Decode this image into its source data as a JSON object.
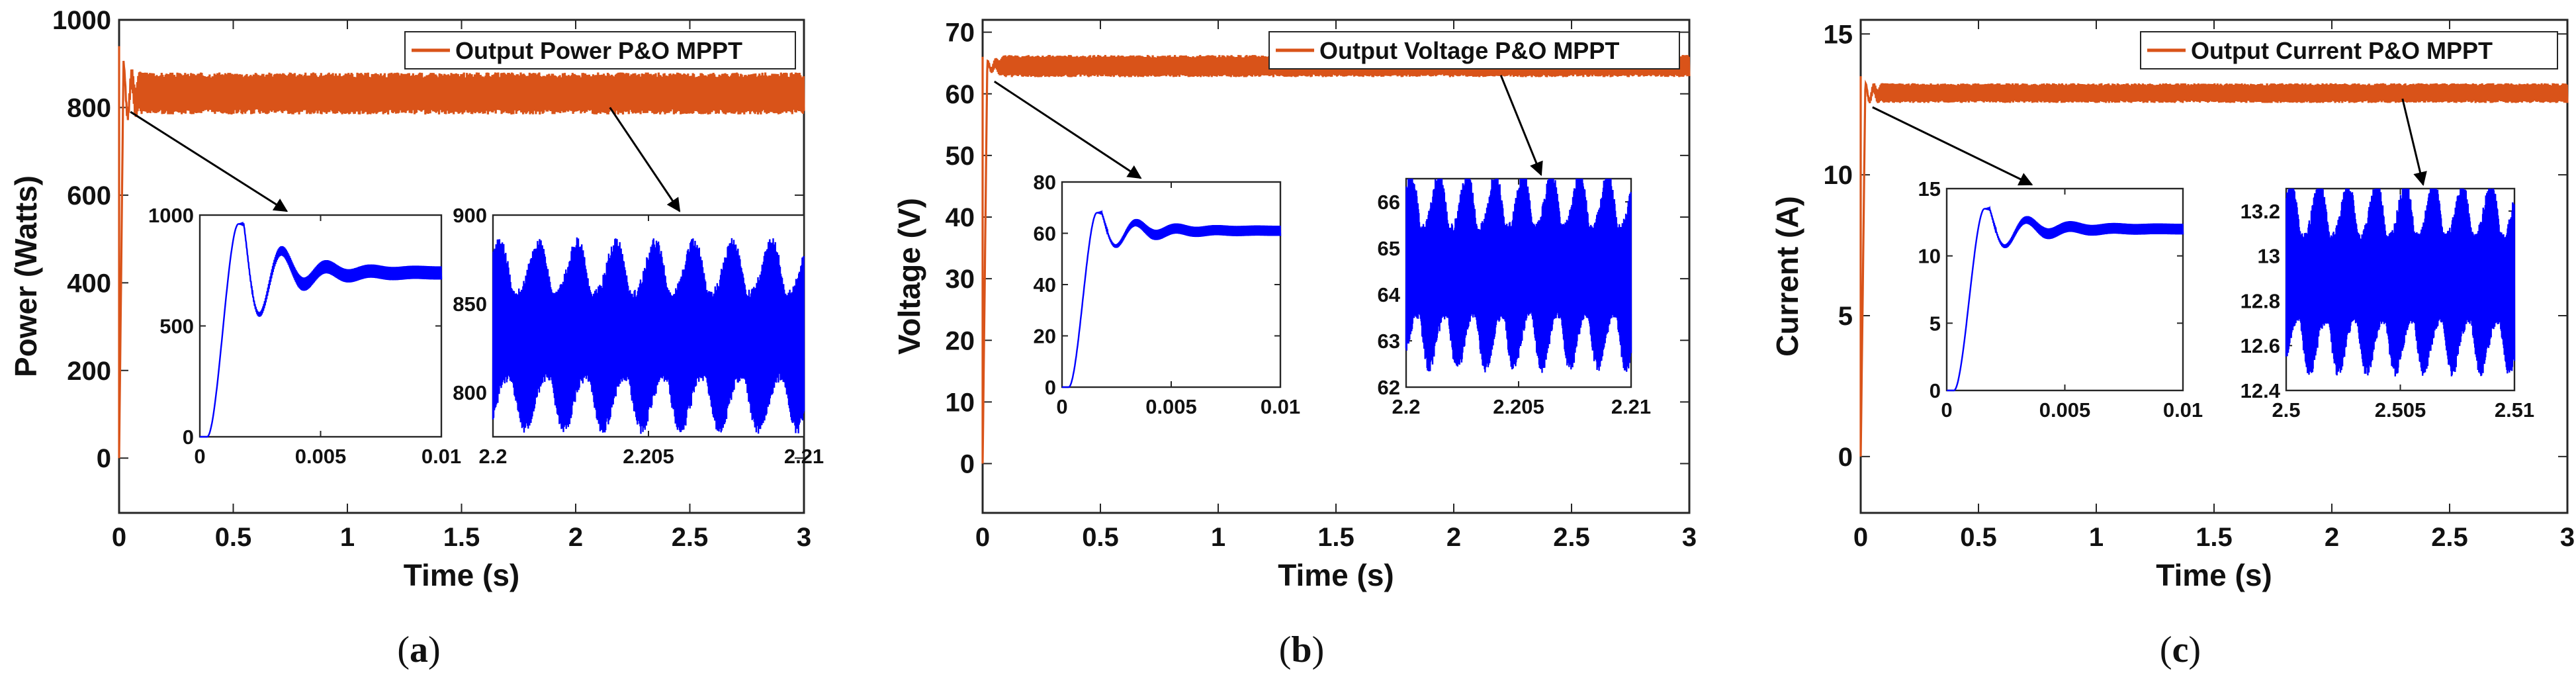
{
  "chart_data": [
    {
      "type": "line",
      "caption": "(a)",
      "caption_letter": "a",
      "xlabel": "Time (s)",
      "ylabel": "Power (Watts)",
      "xlim": [
        0,
        3
      ],
      "ylim": [
        -125,
        1000
      ],
      "xticks": [
        0,
        0.5,
        1,
        1.5,
        2,
        2.5,
        3
      ],
      "xtick_labels": [
        "0",
        "0.5",
        "1",
        "1.5",
        "2",
        "2.5",
        "3"
      ],
      "yticks": [
        0,
        200,
        400,
        600,
        800,
        1000
      ],
      "ytick_labels": [
        "0",
        "200",
        "400",
        "600",
        "800",
        "1000"
      ],
      "legend": "Output Power P&O MPPT",
      "series_color": "#d95319",
      "steady": {
        "center": 832,
        "amplitude": 48,
        "rise_time": 0.02,
        "settle_time": 0.1,
        "spike": 940
      },
      "insets": [
        {
          "kind": "transient",
          "xlim": [
            0,
            0.01
          ],
          "ylim": [
            0,
            1000
          ],
          "xticks": [
            0,
            0.005,
            0.01
          ],
          "xtick_labels": [
            "0",
            "0.005",
            "0.01"
          ],
          "yticks": [
            0,
            500,
            1000
          ],
          "ytick_labels": [
            "0",
            "500",
            "1000"
          ],
          "final": 740,
          "peak": 960,
          "ripple": 30,
          "color": "#0000ff",
          "arrow_from": [
            0.05,
            790
          ]
        },
        {
          "kind": "ripple",
          "xlim": [
            2.2,
            2.21
          ],
          "ylim": [
            775,
            900
          ],
          "xticks": [
            2.2,
            2.205,
            2.21
          ],
          "xtick_labels": [
            "2.2",
            "2.205",
            "2.21"
          ],
          "yticks": [
            800,
            850,
            900
          ],
          "ytick_labels": [
            "800",
            "850",
            "900"
          ],
          "center": 832,
          "amplitude": 48,
          "color": "#0000ff",
          "arrow_from": [
            2.15,
            800
          ]
        }
      ]
    },
    {
      "type": "line",
      "caption": "(b)",
      "caption_letter": "b",
      "xlabel": "Time (s)",
      "ylabel": "Voltage (V)",
      "xlim": [
        0,
        3
      ],
      "ylim": [
        -8,
        72
      ],
      "xticks": [
        0,
        0.5,
        1,
        1.5,
        2,
        2.5,
        3
      ],
      "xtick_labels": [
        "0",
        "0.5",
        "1",
        "1.5",
        "2",
        "2.5",
        "3"
      ],
      "yticks": [
        0,
        10,
        20,
        30,
        40,
        50,
        60,
        70
      ],
      "ytick_labels": [
        "0",
        "10",
        "20",
        "30",
        "40",
        "50",
        "60",
        "70"
      ],
      "legend": "Output Voltage P&O MPPT",
      "series_color": "#d95319",
      "steady": {
        "center": 64.5,
        "amplitude": 1.8,
        "rise_time": 0.02,
        "settle_time": 0.1,
        "spike": 66
      },
      "insets": [
        {
          "kind": "transient",
          "xlim": [
            0,
            0.01
          ],
          "ylim": [
            0,
            80
          ],
          "xticks": [
            0,
            0.005,
            0.01
          ],
          "xtick_labels": [
            "0",
            "0.005",
            "0.01"
          ],
          "yticks": [
            0,
            20,
            40,
            60,
            80
          ],
          "ytick_labels": [
            "0",
            "20",
            "40",
            "60",
            "80"
          ],
          "final": 61,
          "peak": 68,
          "ripple": 2,
          "color": "#0000ff",
          "arrow_from": [
            0.05,
            62
          ]
        },
        {
          "kind": "ripple",
          "xlim": [
            2.2,
            2.21
          ],
          "ylim": [
            62,
            66.5
          ],
          "xticks": [
            2.2,
            2.205,
            2.21
          ],
          "xtick_labels": [
            "2.2",
            "2.205",
            "2.21"
          ],
          "yticks": [
            62,
            63,
            64,
            65,
            66
          ],
          "ytick_labels": [
            "62",
            "63",
            "64",
            "65",
            "66"
          ],
          "center": 64.5,
          "amplitude": 1.9,
          "color": "#0000ff",
          "arrow_from": [
            2.2,
            63
          ]
        }
      ]
    },
    {
      "type": "line",
      "caption": "(c)",
      "caption_letter": "c",
      "xlabel": "Time (s)",
      "ylabel": "Current (A)",
      "xlim": [
        0,
        3
      ],
      "ylim": [
        -2,
        15.5
      ],
      "xticks": [
        0,
        0.5,
        1,
        1.5,
        2,
        2.5,
        3
      ],
      "xtick_labels": [
        "0",
        "0.5",
        "1",
        "1.5",
        "2",
        "2.5",
        "3"
      ],
      "yticks": [
        0,
        5,
        10,
        15
      ],
      "ytick_labels": [
        "0",
        "5",
        "10",
        "15"
      ],
      "legend": "Output Current P&O MPPT",
      "series_color": "#d95319",
      "steady": {
        "center": 12.9,
        "amplitude": 0.35,
        "rise_time": 0.02,
        "settle_time": 0.1,
        "spike": 13.5
      },
      "insets": [
        {
          "kind": "transient",
          "xlim": [
            0,
            0.01
          ],
          "ylim": [
            0,
            15
          ],
          "xticks": [
            0,
            0.005,
            0.01
          ],
          "xtick_labels": [
            "0",
            "0.005",
            "0.01"
          ],
          "yticks": [
            0,
            5,
            10,
            15
          ],
          "ytick_labels": [
            "0",
            "5",
            "10",
            "15"
          ],
          "final": 12,
          "peak": 13.5,
          "ripple": 0.4,
          "color": "#0000ff",
          "arrow_from": [
            0.05,
            12.4
          ]
        },
        {
          "kind": "ripple",
          "xlim": [
            2.5,
            2.51
          ],
          "ylim": [
            12.4,
            13.3
          ],
          "xticks": [
            2.5,
            2.505,
            2.51
          ],
          "xtick_labels": [
            "2.5",
            "2.505",
            "2.51"
          ],
          "yticks": [
            12.4,
            12.6,
            12.8,
            13,
            13.2
          ],
          "ytick_labels": [
            "12.4",
            "12.6",
            "12.8",
            "13",
            "13.2"
          ],
          "center": 12.9,
          "amplitude": 0.38,
          "color": "#0000ff",
          "arrow_from": [
            2.3,
            12.7
          ]
        }
      ]
    }
  ]
}
